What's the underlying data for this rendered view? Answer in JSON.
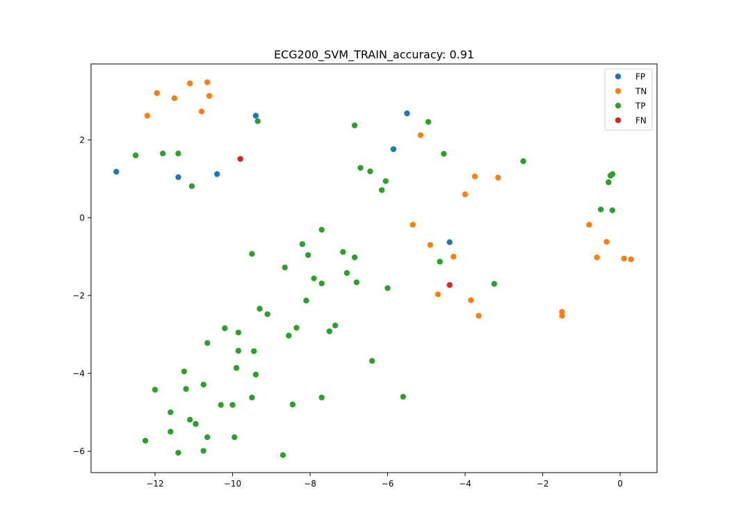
{
  "chart_data": {
    "type": "scatter",
    "title": "ECG200_SVM_TRAIN_accuracy: 0.91",
    "xlabel": "",
    "ylabel": "",
    "xlim": [
      -13.65,
      0.95
    ],
    "ylim": [
      -6.55,
      3.95
    ],
    "xticks": [
      -12,
      -10,
      -8,
      -6,
      -4,
      -2,
      0
    ],
    "yticks": [
      -6,
      -4,
      -2,
      0,
      2
    ],
    "grid": false,
    "legend_position": "top-right",
    "series": [
      {
        "name": "FP",
        "color": "#1f77b4",
        "points": [
          [
            -13.0,
            1.18
          ],
          [
            -11.4,
            1.04
          ],
          [
            -10.4,
            1.12
          ],
          [
            -9.4,
            2.62
          ],
          [
            -5.5,
            2.68
          ],
          [
            -5.85,
            1.76
          ],
          [
            -4.4,
            -0.63
          ]
        ]
      },
      {
        "name": "TN",
        "color": "#ff7f0e",
        "points": [
          [
            -12.2,
            2.62
          ],
          [
            -11.95,
            3.2
          ],
          [
            -11.5,
            3.07
          ],
          [
            -11.1,
            3.45
          ],
          [
            -10.8,
            2.73
          ],
          [
            -10.65,
            3.48
          ],
          [
            -10.6,
            3.13
          ],
          [
            -5.15,
            2.12
          ],
          [
            -5.35,
            -0.18
          ],
          [
            -4.9,
            -0.7
          ],
          [
            -4.7,
            -1.97
          ],
          [
            -4.3,
            -1.0
          ],
          [
            -4.0,
            0.6
          ],
          [
            -3.75,
            1.06
          ],
          [
            -3.85,
            -2.12
          ],
          [
            -3.65,
            -2.52
          ],
          [
            -3.15,
            1.03
          ],
          [
            -1.5,
            -2.42
          ],
          [
            -1.5,
            -2.52
          ],
          [
            -0.8,
            -0.18
          ],
          [
            -0.6,
            -1.02
          ],
          [
            -0.35,
            -0.62
          ],
          [
            0.1,
            -1.05
          ],
          [
            0.28,
            -1.07
          ]
        ]
      },
      {
        "name": "TP",
        "color": "#2ca02c",
        "points": [
          [
            -12.5,
            1.6
          ],
          [
            -11.8,
            1.65
          ],
          [
            -11.4,
            1.65
          ],
          [
            -11.05,
            0.81
          ],
          [
            -9.35,
            2.48
          ],
          [
            -6.85,
            2.37
          ],
          [
            -4.95,
            2.46
          ],
          [
            -4.55,
            1.64
          ],
          [
            -6.7,
            1.28
          ],
          [
            -6.45,
            1.19
          ],
          [
            -6.05,
            0.94
          ],
          [
            -6.15,
            0.71
          ],
          [
            -2.5,
            1.45
          ],
          [
            -0.25,
            1.08
          ],
          [
            -0.2,
            1.12
          ],
          [
            -0.3,
            0.91
          ],
          [
            -0.5,
            0.21
          ],
          [
            -0.2,
            0.19
          ],
          [
            -7.7,
            -0.31
          ],
          [
            -8.2,
            -0.68
          ],
          [
            -8.05,
            -0.96
          ],
          [
            -7.15,
            -0.88
          ],
          [
            -6.85,
            -1.02
          ],
          [
            -9.5,
            -0.93
          ],
          [
            -8.65,
            -1.28
          ],
          [
            -7.05,
            -1.42
          ],
          [
            -7.9,
            -1.56
          ],
          [
            -7.7,
            -1.69
          ],
          [
            -6.8,
            -1.66
          ],
          [
            -6.0,
            -1.81
          ],
          [
            -4.65,
            -1.13
          ],
          [
            -3.25,
            -1.7
          ],
          [
            -8.1,
            -2.13
          ],
          [
            -9.3,
            -2.34
          ],
          [
            -9.1,
            -2.48
          ],
          [
            -7.35,
            -2.77
          ],
          [
            -7.5,
            -2.92
          ],
          [
            -8.35,
            -2.83
          ],
          [
            -8.55,
            -3.03
          ],
          [
            -10.2,
            -2.84
          ],
          [
            -9.85,
            -2.95
          ],
          [
            -10.65,
            -3.22
          ],
          [
            -9.85,
            -3.42
          ],
          [
            -9.45,
            -3.43
          ],
          [
            -9.9,
            -3.86
          ],
          [
            -9.4,
            -4.03
          ],
          [
            -11.25,
            -3.95
          ],
          [
            -12.0,
            -4.42
          ],
          [
            -11.2,
            -4.4
          ],
          [
            -10.75,
            -4.29
          ],
          [
            -6.4,
            -3.68
          ],
          [
            -10.3,
            -4.81
          ],
          [
            -10.0,
            -4.81
          ],
          [
            -9.5,
            -4.62
          ],
          [
            -8.45,
            -4.8
          ],
          [
            -7.7,
            -4.62
          ],
          [
            -5.6,
            -4.6
          ],
          [
            -11.6,
            -5.0
          ],
          [
            -11.1,
            -5.19
          ],
          [
            -10.95,
            -5.3
          ],
          [
            -11.6,
            -5.5
          ],
          [
            -10.65,
            -5.64
          ],
          [
            -9.95,
            -5.64
          ],
          [
            -12.25,
            -5.73
          ],
          [
            -11.4,
            -6.04
          ],
          [
            -10.75,
            -5.99
          ],
          [
            -8.7,
            -6.1
          ]
        ]
      },
      {
        "name": "FN",
        "color": "#d62728",
        "points": [
          [
            -9.8,
            1.51
          ],
          [
            -4.4,
            -1.73
          ]
        ]
      }
    ]
  }
}
